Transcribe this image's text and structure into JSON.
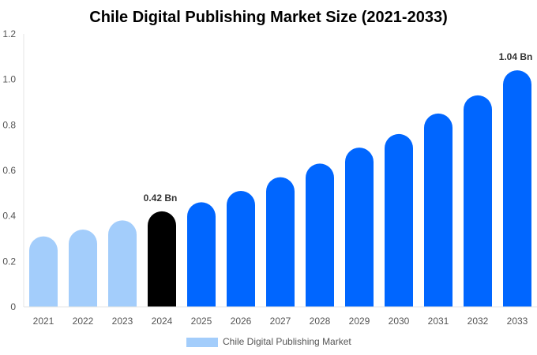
{
  "chart_data": {
    "type": "bar",
    "title": "Chile Digital Publishing Market Size (2021-2033)",
    "xlabel": "",
    "ylabel": "",
    "categories": [
      "2021",
      "2022",
      "2023",
      "2024",
      "2025",
      "2026",
      "2027",
      "2028",
      "2029",
      "2030",
      "2031",
      "2032",
      "2033"
    ],
    "series": [
      {
        "name": "Chile Digital Publishing Market",
        "values": [
          0.31,
          0.34,
          0.38,
          0.42,
          0.46,
          0.51,
          0.57,
          0.63,
          0.7,
          0.76,
          0.85,
          0.93,
          1.04
        ]
      }
    ],
    "data_labels": [
      {
        "category": "2024",
        "text": "0.42 Bn"
      },
      {
        "category": "2033",
        "text": "1.04 Bn"
      }
    ],
    "ylim": [
      0,
      1.2
    ],
    "yticks": [
      "0",
      "0.2",
      "0.4",
      "0.6",
      "0.8",
      "1.0",
      "1.2"
    ],
    "grid": false,
    "legend_position": "bottom",
    "colors": {
      "historical": "#a3cdfb",
      "base_year": "#000000",
      "forecast": "#0066ff"
    }
  }
}
